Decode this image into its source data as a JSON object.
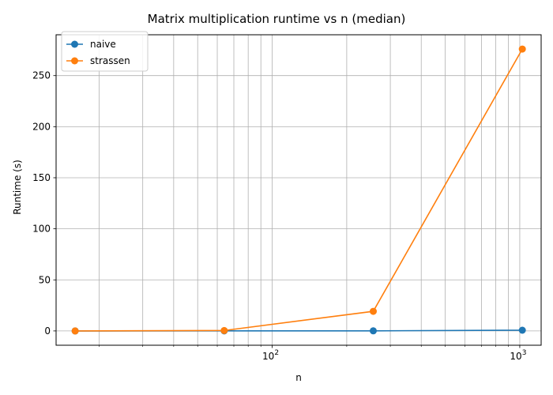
{
  "chart_data": {
    "type": "line",
    "title": "Matrix multiplication runtime vs n (median)",
    "xlabel": "n",
    "ylabel": "Runtime (s)",
    "x_scale": "log",
    "xlim": [
      13.4,
      1220
    ],
    "ylim": [
      -14,
      290
    ],
    "x_major_ticks": [
      100,
      1000
    ],
    "x_tick_labels": [
      "10",
      "10"
    ],
    "x_tick_label_exponents": [
      "2",
      "3"
    ],
    "x_minor_ticks": [
      20,
      30,
      40,
      50,
      60,
      70,
      80,
      90,
      200,
      300,
      400,
      500,
      600,
      700,
      800,
      900
    ],
    "y_ticks": [
      0,
      50,
      100,
      150,
      200,
      250
    ],
    "y_tick_labels": [
      "0",
      "50",
      "100",
      "150",
      "200",
      "250"
    ],
    "grid": true,
    "legend_position": "top-left",
    "series": [
      {
        "name": "naive",
        "color": "#1f77b4",
        "marker": "circle",
        "x": [
          16,
          64,
          256,
          1024
        ],
        "y": [
          0.0,
          0.05,
          0.1,
          0.7
        ]
      },
      {
        "name": "strassen",
        "color": "#ff7f0e",
        "marker": "circle",
        "x": [
          16,
          64,
          256,
          1024
        ],
        "y": [
          0.0,
          0.4,
          19.2,
          276.0
        ]
      }
    ]
  }
}
